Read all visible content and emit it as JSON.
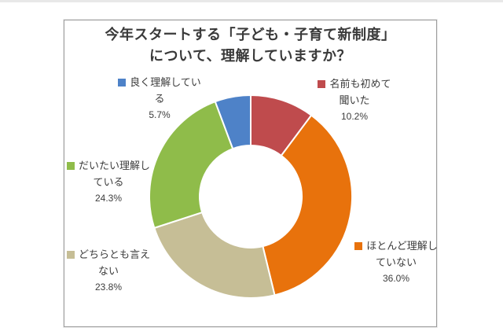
{
  "page": {
    "background": "#ffffff",
    "top_strip_color": "#e8e8e8",
    "box_border_color": "#9b9b9b",
    "text_color": "#3d3d3d"
  },
  "chart": {
    "title_line1": "今年スタートする「子ども・子育て新制度」",
    "title_line2": "について、理解していますか？"
  },
  "chart_data": {
    "type": "pie",
    "subtype": "donut",
    "title": "今年スタートする「子ども・子育て新制度」について、理解していますか？",
    "start_angle_deg": 0,
    "direction": "clockwise",
    "inner_radius_ratio": 0.5,
    "legend_position": "data-labels",
    "segments": [
      {
        "label": "名前も初めて聞いた",
        "label_lines": [
          "名前も初めて",
          "聞いた"
        ],
        "value": 10.2,
        "pct_text": "10.2%",
        "color": "#bf4b4d"
      },
      {
        "label": "ほとんど理解していない",
        "label_lines": [
          "ほとんど理解し",
          "ていない"
        ],
        "value": 36.0,
        "pct_text": "36.0%",
        "color": "#e8720c"
      },
      {
        "label": "どちらとも言えない",
        "label_lines": [
          "どちらとも言え",
          "ない"
        ],
        "value": 23.8,
        "pct_text": "23.8%",
        "color": "#c6be96"
      },
      {
        "label": "だいたい理解している",
        "label_lines": [
          "だいたい理解し",
          "ている"
        ],
        "value": 24.3,
        "pct_text": "24.3%",
        "color": "#8fbc4a"
      },
      {
        "label": "良く理解している",
        "label_lines": [
          "良く理解してい",
          "る"
        ],
        "value": 5.7,
        "pct_text": "5.7%",
        "color": "#4e82c8"
      }
    ]
  }
}
